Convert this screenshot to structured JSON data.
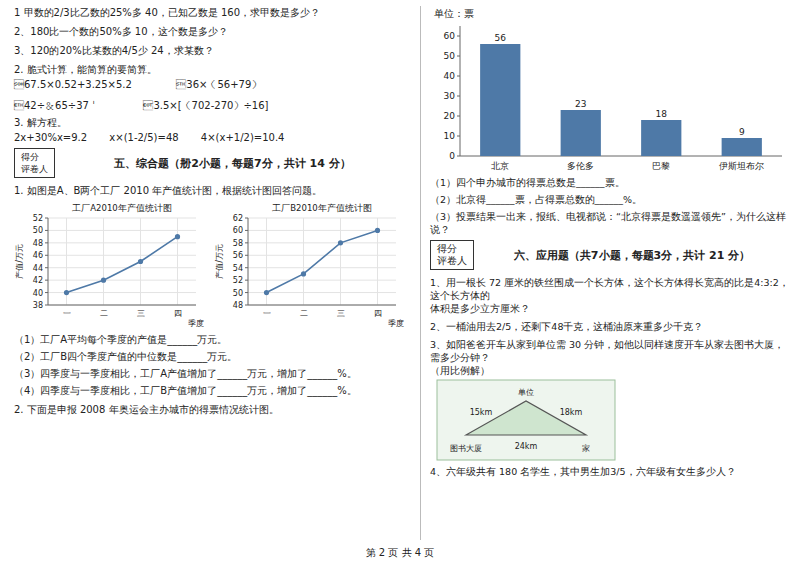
{
  "chart_data": [
    {
      "type": "bar",
      "title": "单位：票",
      "categories": [
        "北京",
        "多伦多",
        "巴黎",
        "伊斯坦布尔"
      ],
      "values": [
        56,
        23,
        18,
        9
      ],
      "ylim": [
        0,
        65
      ],
      "yticks": [
        0,
        10,
        20,
        30,
        40,
        50,
        60
      ],
      "grid": false,
      "data_labels": true,
      "annotations": [
        "（1）四个申办城市的得票总数是______票。",
        "（2）北京得______票，占得票总数的______%。",
        "（3）投票结果一出来，报纸、电视都说：“北京得票是数遥遥领先”，为什么这样说？",
        "得分",
        "评卷人",
        "六、应用题（共7小题，每题3分，共计 21 分）",
        "1、用一根长 72 厘米的铁丝围成一个长方体，这个长方体得长宽高的比是4:3:2，这个长方体的",
        "体积是多少立方厘米？",
        "2、一桶油用去2/5，还剩下48千克，这桶油原来重多少千克？",
        "3、如阳爸爸开车从家到单位需 30 分钟，如他以同样速度开车从家去图书大厦，需多少分钟？",
        "（用比例解）",
        "4、六年级共有 180 名学生，其中男生加3/5，六年级有女生多少人？",
        "图书大厦",
        "单位",
        "家",
        "15km",
        "18km",
        "24km"
      ]
    },
    {
      "type": "line",
      "title": "工厂A2010年产值统计图",
      "xlabel": "季度",
      "ylabel": "产值/万元",
      "categories": [
        "一",
        "二",
        "三",
        "四"
      ],
      "values": [
        40,
        42,
        45,
        49
      ],
      "ylim": [
        38,
        52
      ],
      "yticks": [
        38,
        40,
        42,
        44,
        46,
        48,
        50,
        52
      ],
      "grid": true,
      "marker": "circle",
      "annotations": [
        "1 甲数的2/3比乙数的25%多 40，已知乙数是 160，求甲数是多少？",
        "2、180比一个数的50%多 10，这个数是多少？",
        "3、120的20%比某数的4/5少 24，求某数？",
        "2. 脆式计算，能简算的要简算。",
        "\u000167.5×0.52+3.25×5.2              \u000236×（56+79）",
        "\u000342÷＆65÷37＇              \u00043.5×[（702-270）÷16]",
        "3. 解方程。",
        "2x+30%x=9.2       x×(1-2/5)=48       4×(x+1/2)=10.4",
        "得分",
        "评卷人",
        "五、综合题（刱2小题，每题7分，共计 14 分）",
        "1. 如图是A、B两个工厂 2010 年产值统计图，根据统计图回答问题。",
        "（1）工厂A平均每个季度的产值是______万元。",
        "（2）工厂B四个季度产值的中位数是______万元。",
        "（3）四季度与一季度相比，工厂A产值增加了______万元，增加了______%。",
        "（4）四季度与一季度相比，工厂B产值增加了______万元，增加了______%。",
        "2. 下面是申报 2008 年奥运会主办城市的得票情况统计图。",
        "第 2 页 共 4 页"
      ]
    },
    {
      "type": "line",
      "title": "工厂B2010年产值统计图",
      "xlabel": "季度",
      "ylabel": "产值/万元",
      "categories": [
        "一",
        "二",
        "三",
        "四"
      ],
      "values": [
        50,
        53,
        58,
        60
      ],
      "ylim": [
        48,
        62
      ],
      "yticks": [
        48,
        50,
        52,
        54,
        56,
        58,
        60,
        62
      ],
      "grid": true,
      "marker": "circle"
    }
  ]
}
